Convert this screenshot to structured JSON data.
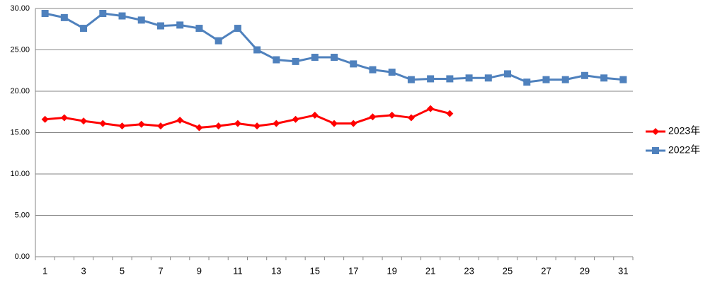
{
  "chart_data": {
    "type": "line",
    "categories": [
      1,
      null,
      3,
      null,
      5,
      null,
      7,
      null,
      9,
      null,
      11,
      null,
      13,
      null,
      15,
      null,
      17,
      null,
      19,
      null,
      21,
      null,
      23,
      null,
      25,
      null,
      27,
      null,
      29,
      null,
      31
    ],
    "series": [
      {
        "name": "2023年",
        "color": "#ff0000",
        "marker": "diamond",
        "values": [
          16.6,
          16.8,
          16.4,
          16.1,
          15.8,
          16.0,
          15.8,
          16.5,
          15.6,
          15.8,
          16.1,
          15.8,
          16.1,
          16.6,
          17.1,
          16.1,
          16.1,
          16.9,
          17.1,
          16.8,
          17.9,
          17.3,
          null,
          null,
          null,
          null,
          null,
          null,
          null,
          null,
          null
        ]
      },
      {
        "name": "2022年",
        "color": "#4f81bd",
        "marker": "square",
        "values": [
          29.4,
          28.9,
          27.6,
          29.4,
          29.1,
          28.6,
          27.9,
          28.0,
          27.6,
          26.1,
          27.6,
          25.0,
          23.8,
          23.6,
          24.1,
          24.1,
          23.3,
          22.6,
          22.3,
          21.4,
          21.5,
          21.5,
          21.6,
          21.6,
          22.1,
          21.1,
          21.4,
          21.4,
          21.9,
          21.6,
          21.4
        ]
      }
    ],
    "ylim": [
      0,
      30
    ],
    "yticks": [
      {
        "value": 0,
        "label": "0.00"
      },
      {
        "value": 5,
        "label": "5.00"
      },
      {
        "value": 10,
        "label": "10.00"
      },
      {
        "value": 15,
        "label": "15.00"
      },
      {
        "value": 20,
        "label": "20.00"
      },
      {
        "value": 25,
        "label": "25.00"
      },
      {
        "value": 30,
        "label": "30.00"
      }
    ],
    "grid": true,
    "legend": "right"
  }
}
